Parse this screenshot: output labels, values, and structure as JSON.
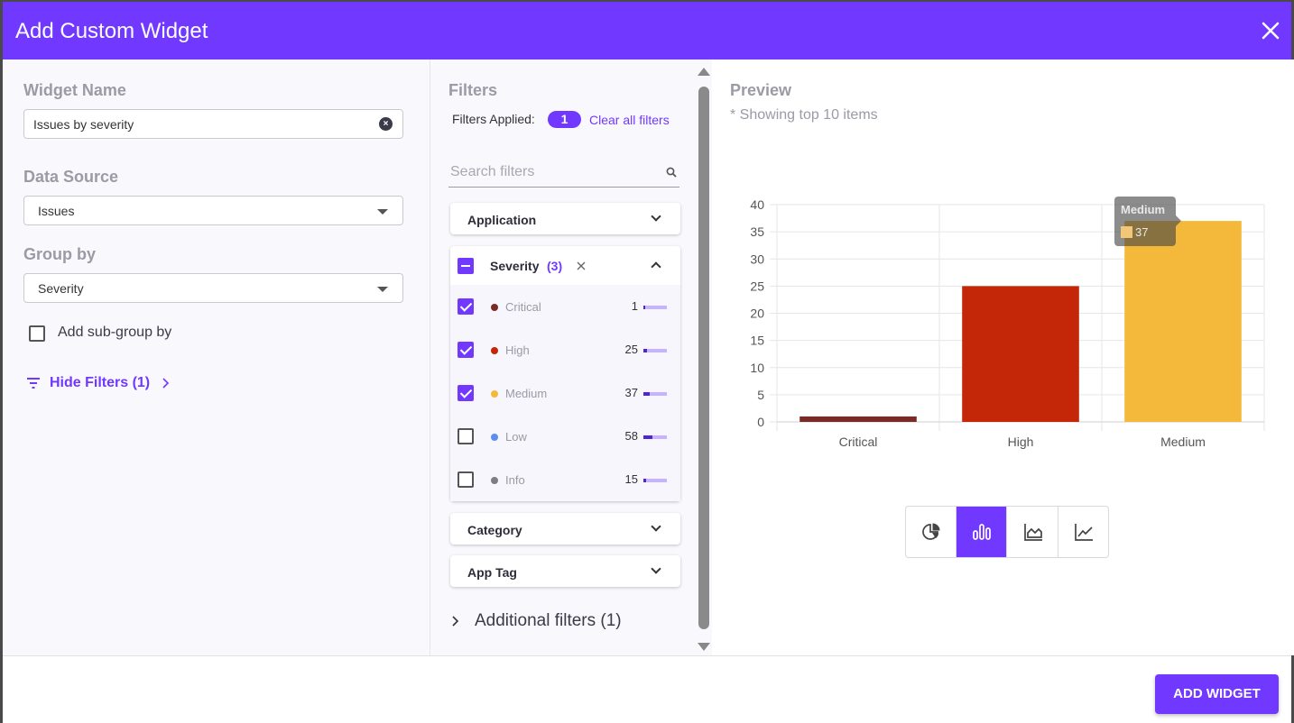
{
  "header": {
    "title": "Add Custom Widget"
  },
  "left": {
    "widget_name_label": "Widget Name",
    "widget_name_value": "Issues by severity",
    "data_source_label": "Data Source",
    "data_source_value": "Issues",
    "group_by_label": "Group by",
    "group_by_value": "Severity",
    "sub_group_label": "Add sub-group by",
    "hide_filters_label": "Hide Filters (1)"
  },
  "filters": {
    "title": "Filters",
    "applied_label": "Filters Applied:",
    "applied_count": "1",
    "clear_all": "Clear all filters",
    "search_placeholder": "Search filters",
    "sections": {
      "application": "Application",
      "severity": "Severity",
      "severity_count": "(3)",
      "category": "Category",
      "app_tag": "App Tag"
    },
    "severity_options": [
      {
        "label": "Critical",
        "count": "1",
        "checked": true,
        "color": "#7a2b26",
        "fill": 0.02
      },
      {
        "label": "High",
        "count": "25",
        "checked": true,
        "color": "#c42608",
        "fill": 0.17
      },
      {
        "label": "Medium",
        "count": "37",
        "checked": true,
        "color": "#f4b93a",
        "fill": 0.25
      },
      {
        "label": "Low",
        "count": "58",
        "checked": false,
        "color": "#5b8ef0",
        "fill": 0.4
      },
      {
        "label": "Info",
        "count": "15",
        "checked": false,
        "color": "#7d7d85",
        "fill": 0.1
      }
    ],
    "additional": "Additional filters (1)"
  },
  "preview": {
    "title": "Preview",
    "subtitle": "* Showing top 10 items",
    "tooltip": {
      "title": "Medium",
      "value": "37"
    },
    "chart_types": [
      "pie-chart-icon",
      "bar-chart-icon",
      "area-chart-icon",
      "line-chart-icon"
    ],
    "active_chart_type": "bar-chart-icon"
  },
  "chart_data": {
    "type": "bar",
    "categories": [
      "Critical",
      "High",
      "Medium"
    ],
    "values": [
      1,
      25,
      37
    ],
    "colors": [
      "#7a2b26",
      "#c42608",
      "#f4b93a"
    ],
    "ylim": [
      0,
      40
    ],
    "yticks": [
      0,
      5,
      10,
      15,
      20,
      25,
      30,
      35,
      40
    ],
    "grid": true,
    "title": "",
    "xlabel": "",
    "ylabel": ""
  },
  "footer": {
    "add_button": "ADD WIDGET"
  },
  "colors": {
    "accent": "#7138ff"
  }
}
